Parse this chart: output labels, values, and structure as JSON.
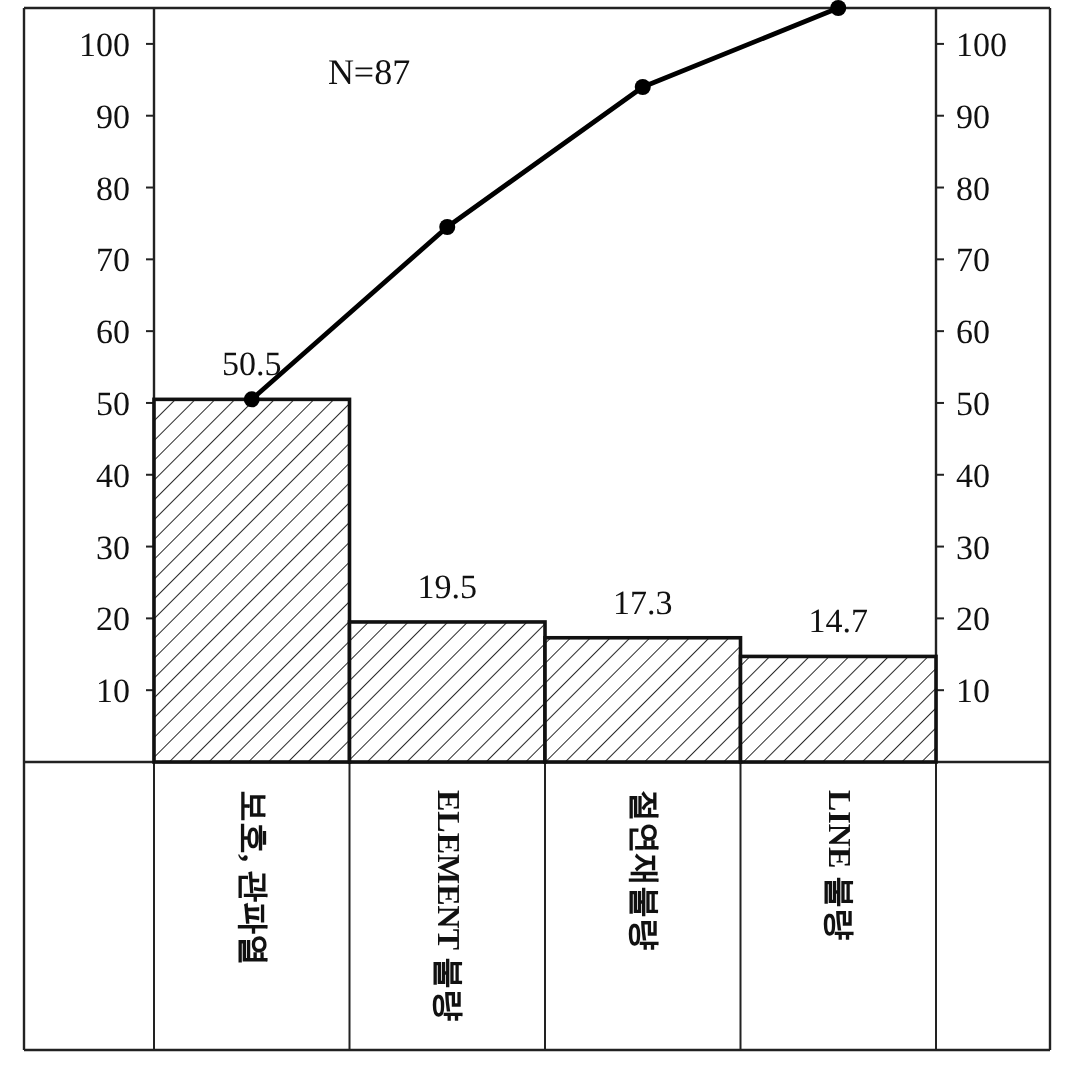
{
  "chart_data": {
    "type": "bar",
    "categories": [
      "보호, 관파열",
      "ELEMENT 불량",
      "절연재불량",
      "LINE 불량"
    ],
    "series": [
      {
        "color": "#111111",
        "values": [
          50.5,
          19.5,
          17.3,
          14.7
        ],
        "value_labels": [
          "50.5",
          "19.5",
          "17.3",
          "14.7"
        ]
      },
      {
        "type": "line",
        "color": "#000000",
        "values": [
          50.5,
          74.5,
          94,
          105
        ]
      }
    ],
    "marker": "circle",
    "line_style": "solid",
    "ylim": [
      0,
      105
    ],
    "yticks": [
      10,
      20,
      30,
      40,
      50,
      60,
      70,
      80,
      90,
      100
    ],
    "y2lim": [
      0,
      105
    ],
    "y2ticks": [
      10,
      20,
      30,
      40,
      50,
      60,
      70,
      80,
      90,
      100
    ],
    "annotations": [
      "N=87"
    ]
  }
}
